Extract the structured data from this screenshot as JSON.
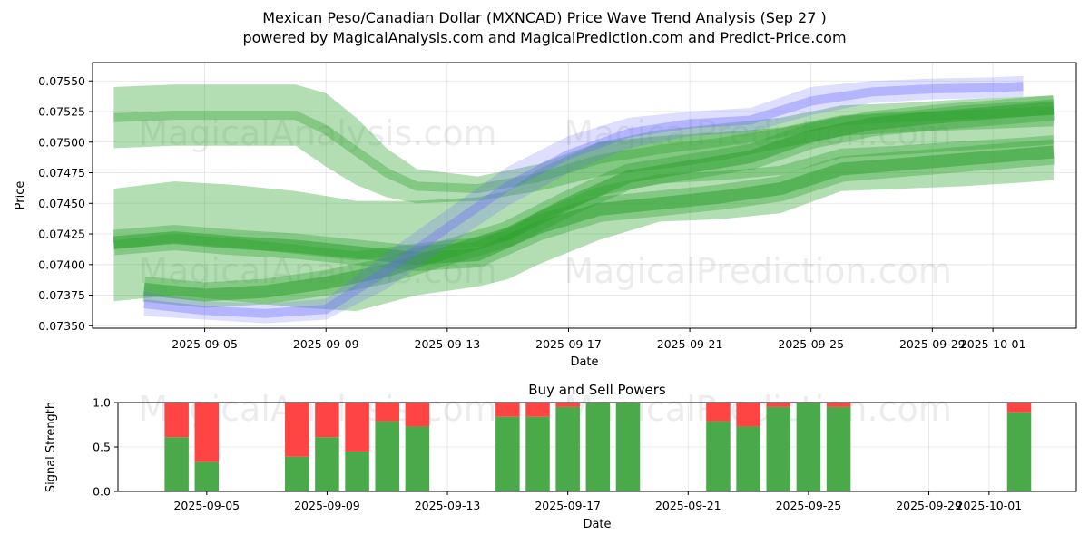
{
  "chart_data": [
    {
      "type": "area",
      "title": "Mexican Peso/Canadian Dollar (MXNCAD) Price Wave Trend Analysis (Sep 27 )",
      "subtitle": "powered by MagicalAnalysis.com and MagicalPrediction.com and Predict-Price.com",
      "xlabel": "Date",
      "ylabel": "Price",
      "x_ticks": [
        "2025-09-05",
        "2025-09-09",
        "2025-09-13",
        "2025-09-17",
        "2025-09-21",
        "2025-09-25",
        "2025-09-29",
        "2025-10-01"
      ],
      "y_ticks": [
        "0.07350",
        "0.07375",
        "0.07400",
        "0.07425",
        "0.07450",
        "0.07475",
        "0.07500",
        "0.07525",
        "0.07550"
      ],
      "ylim": [
        0.07348,
        0.07565
      ],
      "grid": true,
      "colors": {
        "green": "#2ca02c",
        "blue": "#6a6aff"
      },
      "watermarks": [
        "MagicalAnalysis.com",
        "MagicalPrediction.com"
      ],
      "series": [
        {
          "name": "upper-band",
          "color": "green",
          "x": [
            "2025-09-02",
            "2025-09-04",
            "2025-09-06",
            "2025-09-08",
            "2025-09-09",
            "2025-09-10",
            "2025-09-11",
            "2025-09-12",
            "2025-09-14",
            "2025-09-16",
            "2025-09-18",
            "2025-09-20",
            "2025-09-22",
            "2025-09-24",
            "2025-09-26",
            "2025-09-28",
            "2025-09-30",
            "2025-10-02",
            "2025-10-03"
          ],
          "upper": [
            0.07545,
            0.07547,
            0.07547,
            0.07547,
            0.0754,
            0.0752,
            0.07495,
            0.07478,
            0.07472,
            0.07482,
            0.075,
            0.0751,
            0.07515,
            0.0752,
            0.0753,
            0.07532,
            0.07535,
            0.07537,
            0.07538
          ],
          "lower": [
            0.07495,
            0.07497,
            0.07497,
            0.07497,
            0.0748,
            0.07465,
            0.07455,
            0.0745,
            0.07452,
            0.0746,
            0.07472,
            0.07478,
            0.07485,
            0.07495,
            0.07505,
            0.07508,
            0.0751,
            0.07512,
            0.07513
          ]
        },
        {
          "name": "wide-band",
          "color": "green",
          "x": [
            "2025-09-02",
            "2025-09-04",
            "2025-09-06",
            "2025-09-08",
            "2025-09-10",
            "2025-09-12",
            "2025-09-14",
            "2025-09-15",
            "2025-09-16",
            "2025-09-18",
            "2025-09-20",
            "2025-09-22",
            "2025-09-24",
            "2025-09-26",
            "2025-09-28",
            "2025-09-30",
            "2025-10-02",
            "2025-10-03"
          ],
          "upper": [
            0.07462,
            0.07468,
            0.07465,
            0.0746,
            0.07452,
            0.07452,
            0.07455,
            0.0746,
            0.07478,
            0.075,
            0.07505,
            0.07508,
            0.07512,
            0.07522,
            0.07525,
            0.0753,
            0.07533,
            0.07535
          ],
          "lower": [
            0.0737,
            0.07375,
            0.0737,
            0.07365,
            0.07362,
            0.07375,
            0.07382,
            0.07388,
            0.074,
            0.0742,
            0.07435,
            0.07437,
            0.07442,
            0.0746,
            0.07462,
            0.07464,
            0.07467,
            0.07469
          ]
        },
        {
          "name": "mid-line",
          "color": "green",
          "x": [
            "2025-09-02",
            "2025-09-04",
            "2025-09-06",
            "2025-09-08",
            "2025-09-10",
            "2025-09-12",
            "2025-09-14",
            "2025-09-16",
            "2025-09-18",
            "2025-09-20",
            "2025-09-22",
            "2025-09-24",
            "2025-09-26",
            "2025-09-28",
            "2025-09-30",
            "2025-10-02",
            "2025-10-03"
          ],
          "values": [
            0.07418,
            0.07422,
            0.07418,
            0.07415,
            0.0741,
            0.07405,
            0.07408,
            0.0743,
            0.07445,
            0.0745,
            0.07455,
            0.07462,
            0.07478,
            0.07482,
            0.07486,
            0.0749,
            0.07492
          ]
        },
        {
          "name": "forecast-core",
          "color": "green",
          "x": [
            "2025-09-03",
            "2025-09-05",
            "2025-09-07",
            "2025-09-09",
            "2025-09-11",
            "2025-09-13",
            "2025-09-15",
            "2025-09-17",
            "2025-09-19",
            "2025-09-21",
            "2025-09-23",
            "2025-09-25",
            "2025-09-27",
            "2025-09-29",
            "2025-10-01",
            "2025-10-03"
          ],
          "values": [
            0.0738,
            0.07375,
            0.07378,
            0.07385,
            0.07395,
            0.0741,
            0.07425,
            0.0745,
            0.07472,
            0.0748,
            0.07488,
            0.07505,
            0.07515,
            0.0752,
            0.07524,
            0.07528
          ]
        },
        {
          "name": "blue-wave",
          "color": "blue",
          "x": [
            "2025-09-03",
            "2025-09-05",
            "2025-09-07",
            "2025-09-09",
            "2025-09-11",
            "2025-09-13",
            "2025-09-15",
            "2025-09-17",
            "2025-09-19",
            "2025-09-21",
            "2025-09-23",
            "2025-09-25",
            "2025-09-27",
            "2025-09-29",
            "2025-10-01",
            "2025-10-02"
          ],
          "upper": [
            0.07378,
            0.0737,
            0.07368,
            0.07372,
            0.0741,
            0.07445,
            0.0748,
            0.07505,
            0.0752,
            0.07525,
            0.07528,
            0.07545,
            0.0755,
            0.07552,
            0.07553,
            0.07554
          ],
          "lower": [
            0.07358,
            0.07355,
            0.07352,
            0.07355,
            0.0738,
            0.07415,
            0.07448,
            0.07475,
            0.07495,
            0.07505,
            0.07508,
            0.07522,
            0.07532,
            0.07535,
            0.07536,
            0.07537
          ]
        }
      ]
    },
    {
      "type": "bar",
      "title": "Buy and Sell Powers",
      "xlabel": "Date",
      "ylabel": "Signal Strength",
      "ylim": [
        0,
        1.0
      ],
      "y_ticks": [
        "0.0",
        "0.5",
        "1.0"
      ],
      "x_ticks": [
        "2025-09-05",
        "2025-09-09",
        "2025-09-13",
        "2025-09-17",
        "2025-09-21",
        "2025-09-25",
        "2025-09-29",
        "2025-10-01"
      ],
      "colors": {
        "buy": "#4aaa4a",
        "sell": "#ff4444"
      },
      "series": [
        {
          "name": "Buy",
          "color": "buy"
        },
        {
          "name": "Sell",
          "color": "sell"
        }
      ],
      "bars": [
        {
          "date": "2025-09-04",
          "buy": 0.61
        },
        {
          "date": "2025-09-05",
          "buy": 0.33
        },
        {
          "date": "2025-09-08",
          "buy": 0.39
        },
        {
          "date": "2025-09-09",
          "buy": 0.61
        },
        {
          "date": "2025-09-10",
          "buy": 0.45
        },
        {
          "date": "2025-09-11",
          "buy": 0.79
        },
        {
          "date": "2025-09-12",
          "buy": 0.73
        },
        {
          "date": "2025-09-15",
          "buy": 0.84
        },
        {
          "date": "2025-09-16",
          "buy": 0.84
        },
        {
          "date": "2025-09-17",
          "buy": 0.95
        },
        {
          "date": "2025-09-18",
          "buy": 1.0
        },
        {
          "date": "2025-09-19",
          "buy": 1.0
        },
        {
          "date": "2025-09-22",
          "buy": 0.79
        },
        {
          "date": "2025-09-23",
          "buy": 0.73
        },
        {
          "date": "2025-09-24",
          "buy": 0.95
        },
        {
          "date": "2025-09-25",
          "buy": 1.0
        },
        {
          "date": "2025-09-26",
          "buy": 0.95
        },
        {
          "date": "2025-10-02",
          "buy": 0.89
        }
      ]
    }
  ]
}
